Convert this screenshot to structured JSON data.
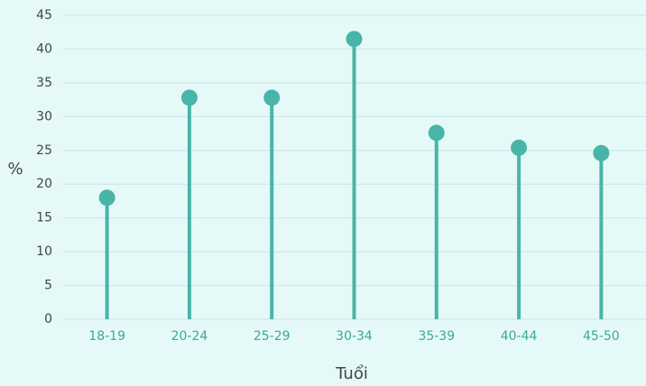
{
  "chart_data": {
    "type": "lollipop",
    "xlabel": "Tuổi",
    "ylabel": "%",
    "categories": [
      "18-19",
      "20-24",
      "25-29",
      "30-34",
      "35-39",
      "40-44",
      "45-50"
    ],
    "values": [
      18,
      32.8,
      32.8,
      41.5,
      27.6,
      25.4,
      24.6
    ],
    "color": "#48b5a8",
    "ylim": [
      0,
      45
    ],
    "yticks": [
      0,
      5,
      10,
      15,
      20,
      25,
      30,
      35,
      40,
      45
    ],
    "grid": true
  }
}
